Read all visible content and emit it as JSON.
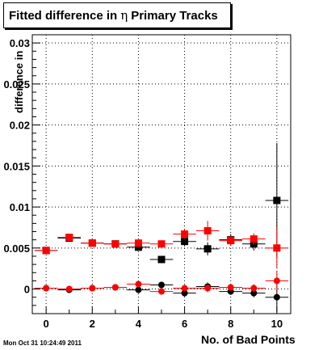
{
  "chart_data": {
    "type": "scatter",
    "title": "Fitted difference in η Primary Tracks",
    "title_parts": {
      "before": "Fitted difference in",
      "symbol": "η",
      "after": "Primary Tracks"
    },
    "xlabel": "No. of Bad Points",
    "ylabel": "difference in",
    "xlim": [
      -0.6,
      10.6
    ],
    "ylim": [
      -0.003,
      0.031
    ],
    "xticks": [
      0,
      2,
      4,
      6,
      8,
      10
    ],
    "xtick_labels": [
      "0",
      "2",
      "4",
      "6",
      "8",
      "10"
    ],
    "yticks": [
      0,
      0.005,
      0.01,
      0.015,
      0.02,
      0.025,
      0.03
    ],
    "ytick_labels": [
      "0",
      "0.005",
      "0.01",
      "0.015",
      "0.02",
      "0.025",
      "0.03"
    ],
    "grid": true,
    "timestamp": "Mon Oct 31 10:24:49 2011",
    "series": [
      {
        "marker": "square",
        "color": "#000000",
        "x": [
          0,
          1,
          2,
          3,
          4,
          5,
          6,
          7,
          8,
          9,
          10
        ],
        "y": [
          0.0047,
          0.0062,
          0.0056,
          0.0055,
          0.0051,
          0.0036,
          0.0058,
          0.0049,
          0.006,
          0.0055,
          0.0108
        ],
        "yerr": [
          0.0002,
          0.0003,
          0.0003,
          0.0003,
          0.0004,
          0.0004,
          0.0006,
          0.0008,
          0.0007,
          0.0008,
          0.007
        ]
      },
      {
        "marker": "square",
        "color": "#ff0000",
        "x": [
          0,
          1,
          2,
          3,
          4,
          5,
          6,
          7,
          8,
          9,
          10
        ],
        "y": [
          0.0047,
          0.0063,
          0.0056,
          0.0055,
          0.0056,
          0.0055,
          0.0067,
          0.0071,
          0.0059,
          0.0061,
          0.005
        ],
        "yerr": [
          0.0002,
          0.0003,
          0.0003,
          0.0003,
          0.0004,
          0.0004,
          0.0006,
          0.0012,
          0.0006,
          0.0007,
          0.0025
        ]
      },
      {
        "marker": "circle",
        "color": "#000000",
        "x": [
          0,
          1,
          2,
          3,
          4,
          5,
          6,
          7,
          8,
          9,
          10
        ],
        "y": [
          0.0001,
          -0.0001,
          0.0001,
          0.0002,
          -0.0001,
          0.0005,
          -0.0005,
          0.0003,
          -0.0003,
          -0.0005,
          -0.001
        ],
        "yerr": [
          0.0001,
          0.0002,
          0.0002,
          0.0002,
          0.0003,
          0.0003,
          0.0004,
          0.0005,
          0.0004,
          0.0005,
          0.0018
        ]
      },
      {
        "marker": "circle",
        "color": "#ff0000",
        "x": [
          0,
          1,
          2,
          3,
          4,
          5,
          6,
          7,
          8,
          9,
          10
        ],
        "y": [
          0.0001,
          0.0,
          0.0001,
          0.0002,
          0.0006,
          -0.0003,
          0.0001,
          0.0001,
          0.0002,
          0.0001,
          0.001
        ],
        "yerr": [
          0.0001,
          0.0002,
          0.0002,
          0.0002,
          0.0003,
          0.0003,
          0.0004,
          0.0005,
          0.0004,
          0.0005,
          0.0012
        ]
      }
    ]
  }
}
